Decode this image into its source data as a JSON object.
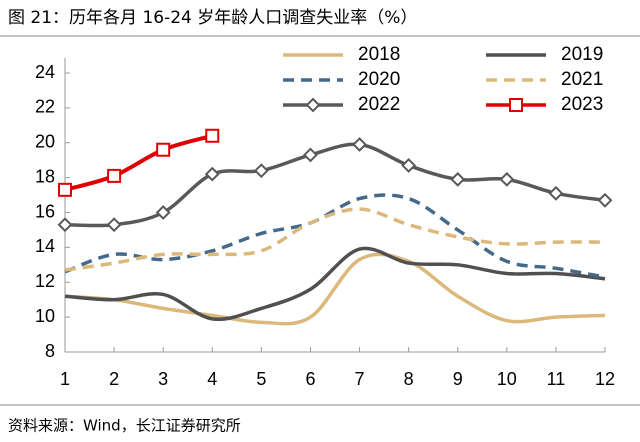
{
  "chart_data": {
    "type": "line",
    "title": "图 21：历年各月 16-24 岁年龄人口调查失业率（%）",
    "source": "资料来源：Wind，长江证券研究所",
    "x": [
      1,
      2,
      3,
      4,
      5,
      6,
      7,
      8,
      9,
      10,
      11,
      12
    ],
    "xlim": [
      1,
      12
    ],
    "xticks": [
      1,
      2,
      3,
      4,
      5,
      6,
      7,
      8,
      9,
      10,
      11,
      12
    ],
    "ylim": [
      8,
      24
    ],
    "yticks": [
      8,
      10,
      12,
      14,
      16,
      18,
      20,
      22,
      24
    ],
    "smooth": true,
    "legend": "upper right",
    "series": [
      {
        "name": "2018",
        "color": "#dcb87a",
        "dash": false,
        "marker": null,
        "values": [
          11.2,
          11.0,
          10.5,
          10.1,
          9.7,
          10.0,
          13.3,
          13.2,
          11.2,
          9.8,
          10.0,
          10.1
        ]
      },
      {
        "name": "2019",
        "color": "#505050",
        "dash": false,
        "marker": null,
        "values": [
          11.2,
          11.0,
          11.3,
          9.9,
          10.5,
          11.6,
          13.9,
          13.1,
          13.0,
          12.5,
          12.5,
          12.2
        ]
      },
      {
        "name": "2020",
        "color": "#44698a",
        "dash": true,
        "marker": null,
        "values": [
          12.6,
          13.6,
          13.3,
          13.8,
          14.8,
          15.4,
          16.8,
          16.8,
          15.0,
          13.2,
          12.8,
          12.3
        ]
      },
      {
        "name": "2021",
        "color": "#dcb87a",
        "dash": true,
        "marker": null,
        "values": [
          12.7,
          13.1,
          13.6,
          13.6,
          13.8,
          15.4,
          16.2,
          15.3,
          14.6,
          14.2,
          14.3,
          14.3
        ]
      },
      {
        "name": "2022",
        "color": "#595959",
        "dash": false,
        "marker": "diamond",
        "values": [
          15.3,
          15.3,
          16.0,
          18.2,
          18.4,
          19.3,
          19.9,
          18.7,
          17.9,
          17.9,
          17.1,
          16.7
        ]
      },
      {
        "name": "2023",
        "color": "#e00000",
        "dash": false,
        "marker": "square",
        "values": [
          17.3,
          18.1,
          19.6,
          20.4,
          null,
          null,
          null,
          null,
          null,
          null,
          null,
          null
        ]
      }
    ]
  }
}
